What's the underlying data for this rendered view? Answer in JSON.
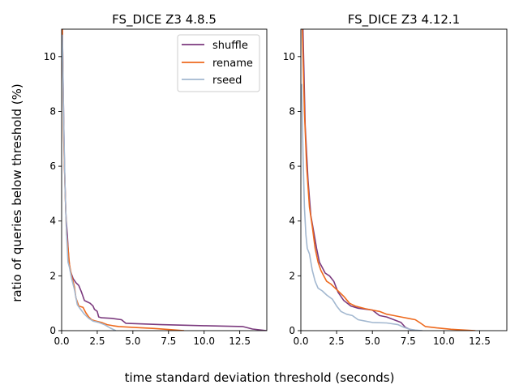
{
  "figure": {
    "xlabel": "time standard deviation threshold (seconds)",
    "ylabel": "ratio of queries below threshold (%)"
  },
  "legend_labels": [
    "shuffle",
    "rename",
    "rseed"
  ],
  "chart_data": [
    {
      "type": "line",
      "title": "FS_DICE Z3 4.8.5",
      "xlim": [
        0,
        14.4
      ],
      "ylim": [
        0,
        11
      ],
      "xticks": [
        "0.0",
        "2.5",
        "5.0",
        "7.5",
        "10.0",
        "12.5"
      ],
      "yticks": [
        "0",
        "2",
        "4",
        "6",
        "8",
        "10"
      ],
      "legend": "top-right",
      "grid": false,
      "series": [
        {
          "name": "shuffle",
          "color": "#7b3a7e",
          "x": [
            0.05,
            0.12,
            0.2,
            0.3,
            0.4,
            0.5,
            0.6,
            0.8,
            1.0,
            1.2,
            1.4,
            1.6,
            1.8,
            2.0,
            2.2,
            2.3,
            2.5,
            2.6,
            2.8,
            3.5,
            4.2,
            4.5,
            7.0,
            10.0,
            12.7,
            13.4,
            14.4
          ],
          "y": [
            11.0,
            8.5,
            6.0,
            4.2,
            3.5,
            2.6,
            2.2,
            1.9,
            1.75,
            1.65,
            1.4,
            1.1,
            1.05,
            1.0,
            0.9,
            0.78,
            0.7,
            0.5,
            0.47,
            0.45,
            0.4,
            0.27,
            0.22,
            0.18,
            0.15,
            0.06,
            0.0
          ]
        },
        {
          "name": "rename",
          "color": "#ee6a1e",
          "x": [
            0.05,
            0.15,
            0.25,
            0.35,
            0.45,
            0.55,
            0.7,
            0.9,
            1.0,
            1.2,
            1.5,
            1.7,
            1.9,
            2.1,
            2.4,
            2.8,
            3.2,
            3.6,
            4.0,
            5.0,
            6.5,
            7.5,
            8.6
          ],
          "y": [
            11.0,
            7.0,
            5.0,
            3.5,
            3.0,
            2.4,
            2.0,
            1.6,
            1.2,
            0.9,
            0.85,
            0.65,
            0.5,
            0.4,
            0.35,
            0.3,
            0.22,
            0.18,
            0.15,
            0.12,
            0.08,
            0.04,
            0.0
          ]
        },
        {
          "name": "rseed",
          "color": "#a3b8d0",
          "x": [
            0.05,
            0.15,
            0.25,
            0.35,
            0.45,
            0.55,
            0.7,
            0.9,
            1.1,
            1.3,
            1.6,
            1.9,
            2.2,
            2.6,
            3.0,
            3.4,
            3.8
          ],
          "y": [
            10.8,
            7.5,
            5.0,
            3.5,
            2.5,
            2.3,
            1.9,
            1.5,
            0.95,
            0.8,
            0.6,
            0.45,
            0.35,
            0.3,
            0.22,
            0.1,
            0.0
          ]
        }
      ]
    },
    {
      "type": "line",
      "title": "FS_DICE Z3 4.12.1",
      "xlim": [
        0,
        14.4
      ],
      "ylim": [
        0,
        11
      ],
      "xticks": [
        "0.0",
        "2.5",
        "5.0",
        "7.5",
        "10.0",
        "12.5"
      ],
      "yticks": [
        "0",
        "2",
        "4",
        "6",
        "8",
        "10"
      ],
      "grid": false,
      "series": [
        {
          "name": "shuffle",
          "color": "#7b3a7e",
          "x": [
            0.15,
            0.3,
            0.5,
            0.7,
            0.9,
            1.1,
            1.3,
            1.5,
            1.7,
            2.0,
            2.3,
            2.6,
            3.0,
            3.5,
            4.0,
            5.0,
            5.5,
            6.0,
            6.5,
            7.0,
            7.3,
            7.6,
            8.0
          ],
          "y": [
            11.0,
            7.5,
            5.5,
            4.2,
            3.6,
            3.0,
            2.5,
            2.3,
            2.1,
            2.0,
            1.8,
            1.4,
            1.1,
            0.9,
            0.82,
            0.75,
            0.55,
            0.5,
            0.4,
            0.3,
            0.12,
            0.05,
            0.0
          ]
        },
        {
          "name": "rename",
          "color": "#ee6a1e",
          "x": [
            0.1,
            0.25,
            0.4,
            0.6,
            0.8,
            1.0,
            1.2,
            1.4,
            1.6,
            1.8,
            2.1,
            2.4,
            2.6,
            3.0,
            3.4,
            3.8,
            4.5,
            5.0,
            5.5,
            6.0,
            6.5,
            7.0,
            7.5,
            8.0,
            8.3,
            8.7,
            9.5,
            10.5,
            12.2
          ],
          "y": [
            11.0,
            8.0,
            6.0,
            4.5,
            3.8,
            3.0,
            2.5,
            2.2,
            2.0,
            1.8,
            1.7,
            1.55,
            1.45,
            1.25,
            1.0,
            0.9,
            0.8,
            0.75,
            0.7,
            0.6,
            0.55,
            0.5,
            0.45,
            0.4,
            0.3,
            0.15,
            0.1,
            0.05,
            0.0
          ]
        },
        {
          "name": "rseed",
          "color": "#a3b8d0",
          "x": [
            0.05,
            0.15,
            0.25,
            0.35,
            0.45,
            0.6,
            0.8,
            1.0,
            1.2,
            1.5,
            1.8,
            2.2,
            2.5,
            2.8,
            3.2,
            3.6,
            4.0,
            4.5,
            5.0,
            6.0,
            6.8,
            7.2,
            7.6,
            8.0,
            8.5
          ],
          "y": [
            9.0,
            6.5,
            4.5,
            3.5,
            3.0,
            2.8,
            2.2,
            1.8,
            1.55,
            1.45,
            1.3,
            1.15,
            0.9,
            0.7,
            0.6,
            0.55,
            0.4,
            0.35,
            0.3,
            0.28,
            0.22,
            0.12,
            0.05,
            0.02,
            0.0
          ]
        }
      ]
    }
  ]
}
